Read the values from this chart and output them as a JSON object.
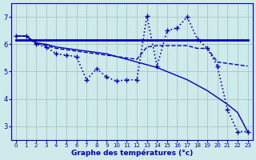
{
  "xlabel": "Graphe des températures (°c)",
  "background_color": "#ceeaea",
  "grid_color": "#aacccc",
  "line_color": "#0000bb",
  "xlim": [
    -0.5,
    23.5
  ],
  "ylim": [
    2.5,
    7.5
  ],
  "yticks": [
    3,
    4,
    5,
    6,
    7
  ],
  "xticks": [
    0,
    1,
    2,
    3,
    4,
    5,
    6,
    7,
    8,
    9,
    10,
    11,
    12,
    13,
    14,
    15,
    16,
    17,
    18,
    19,
    20,
    21,
    22,
    23
  ],
  "series": [
    {
      "x": [
        0,
        1,
        2,
        3,
        4,
        5,
        6,
        7,
        8,
        9,
        10,
        11,
        12,
        13,
        14,
        15,
        16,
        17,
        18,
        19,
        20,
        21,
        22,
        23
      ],
      "y": [
        6.3,
        6.3,
        6.0,
        5.9,
        5.65,
        5.6,
        5.55,
        4.7,
        5.1,
        4.8,
        4.65,
        4.7,
        4.7,
        7.05,
        5.2,
        6.5,
        6.6,
        7.0,
        6.2,
        5.85,
        5.2,
        3.6,
        2.8,
        2.8
      ],
      "style": ":",
      "marker": "+",
      "lw": 1.2,
      "ms": 4
    },
    {
      "x": [
        0,
        23
      ],
      "y": [
        6.15,
        6.15
      ],
      "style": "-",
      "marker": null,
      "lw": 2.0,
      "ms": 0
    },
    {
      "x": [
        0,
        1,
        2,
        3,
        4,
        5,
        6,
        7,
        8,
        9,
        10,
        11,
        12,
        13,
        14,
        15,
        16,
        17,
        18,
        19,
        20,
        21,
        22,
        23
      ],
      "y": [
        6.3,
        6.3,
        6.05,
        5.95,
        5.85,
        5.8,
        5.75,
        5.7,
        5.65,
        5.6,
        5.55,
        5.5,
        5.45,
        5.9,
        5.95,
        5.95,
        5.95,
        5.95,
        5.85,
        5.85,
        5.35,
        5.3,
        5.25,
        5.2
      ],
      "style": "--",
      "marker": null,
      "lw": 1.0,
      "ms": 0
    },
    {
      "x": [
        0,
        1,
        2,
        3,
        4,
        5,
        6,
        7,
        8,
        9,
        10,
        11,
        12,
        13,
        14,
        15,
        16,
        17,
        18,
        19,
        20,
        21,
        22,
        23
      ],
      "y": [
        6.3,
        6.3,
        6.05,
        6.0,
        5.9,
        5.85,
        5.8,
        5.75,
        5.7,
        5.65,
        5.55,
        5.45,
        5.35,
        5.25,
        5.15,
        5.0,
        4.85,
        4.7,
        4.5,
        4.3,
        4.05,
        3.8,
        3.5,
        2.8
      ],
      "style": "-",
      "marker": null,
      "lw": 1.0,
      "ms": 0
    }
  ]
}
